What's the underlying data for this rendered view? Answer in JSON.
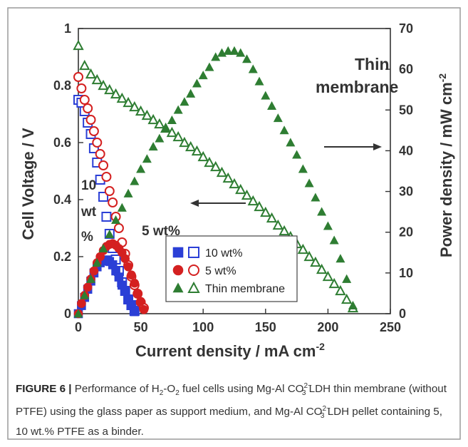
{
  "chart_data": {
    "type": "scatter",
    "xlabel": "Current density / mA cm",
    "xlabel_sup": "-2",
    "ylabel_left": "Cell Voltage / V",
    "ylabel_right": "Power density / mW cm",
    "ylabel_right_sup": "-2",
    "xlim": [
      0,
      250
    ],
    "ylim_left": [
      0,
      1
    ],
    "ylim_right": [
      0,
      70
    ],
    "x_ticks": [
      "0",
      "50",
      "100",
      "150",
      "200",
      "250"
    ],
    "y_left_ticks": [
      "0",
      "0.2",
      "0.4",
      "0.6",
      "0.8",
      "1"
    ],
    "y_right_ticks": [
      "0",
      "10",
      "20",
      "30",
      "40",
      "50",
      "60",
      "70"
    ],
    "legend": [
      {
        "label": "10 wt%",
        "color": "#2b3fd6",
        "markers": [
          "filled-square",
          "open-square"
        ]
      },
      {
        "label": "5 wt%",
        "color": "#d42020",
        "markers": [
          "filled-circle",
          "open-circle"
        ]
      },
      {
        "label": "Thin membrane",
        "color": "#2e7d32",
        "markers": [
          "filled-triangle",
          "open-triangle"
        ]
      }
    ],
    "annotations": {
      "thin_membrane_line1": "Thin",
      "thin_membrane_line2": "membrane",
      "ten_wt_a": "10",
      "ten_wt_b": "wt",
      "ten_wt_c": "%",
      "five_wt": "5 wt%"
    },
    "series": [
      {
        "name": "10 wt%",
        "kind": "voltage",
        "axis": "left",
        "color": "#2b3fd6",
        "marker": "open-square",
        "x": [
          0,
          2.5,
          5,
          7.5,
          10,
          12.5,
          15,
          17.5,
          20,
          22.5,
          25,
          27.5,
          30,
          32.5,
          35,
          37.5,
          40,
          42.5,
          45
        ],
        "y": [
          0.75,
          0.74,
          0.71,
          0.67,
          0.63,
          0.58,
          0.53,
          0.47,
          0.41,
          0.34,
          0.28,
          0.23,
          0.19,
          0.15,
          0.11,
          0.08,
          0.05,
          0.03,
          0.01
        ]
      },
      {
        "name": "10 wt%",
        "kind": "power",
        "axis": "right",
        "color": "#2b3fd6",
        "marker": "filled-square",
        "x": [
          0,
          2.5,
          5,
          7.5,
          10,
          12.5,
          15,
          17.5,
          20,
          22.5,
          25,
          27.5,
          30,
          32.5,
          35,
          37.5,
          40,
          42.5,
          45
        ],
        "y": [
          0,
          2,
          4,
          6,
          8,
          10,
          11.5,
          12.5,
          13,
          13.2,
          12.8,
          12,
          10.5,
          9,
          7,
          5.5,
          3.5,
          2,
          0.5
        ]
      },
      {
        "name": "5 wt%",
        "kind": "voltage",
        "axis": "left",
        "color": "#d42020",
        "marker": "open-circle",
        "x": [
          0,
          2.5,
          5,
          7.5,
          10,
          12.5,
          15,
          17.5,
          20,
          22.5,
          25,
          27.5,
          30,
          32.5,
          35,
          37.5,
          40,
          42.5,
          45,
          47.5,
          50,
          52.5
        ],
        "y": [
          0.83,
          0.79,
          0.75,
          0.72,
          0.68,
          0.64,
          0.6,
          0.56,
          0.52,
          0.48,
          0.43,
          0.39,
          0.34,
          0.3,
          0.25,
          0.21,
          0.17,
          0.13,
          0.1,
          0.07,
          0.04,
          0.02
        ]
      },
      {
        "name": "5 wt%",
        "kind": "power",
        "axis": "right",
        "color": "#d42020",
        "marker": "filled-circle",
        "x": [
          0,
          2.5,
          5,
          7.5,
          10,
          12.5,
          15,
          17.5,
          20,
          22.5,
          25,
          27.5,
          30,
          32.5,
          35,
          37.5,
          40,
          42.5,
          45,
          47.5,
          50,
          52.5
        ],
        "y": [
          0,
          2.5,
          4.5,
          6.5,
          8.5,
          10.5,
          12.5,
          14,
          15.5,
          16.5,
          17,
          17.2,
          16.8,
          16,
          15,
          13.5,
          11.5,
          9.5,
          7.5,
          5,
          3,
          1
        ]
      },
      {
        "name": "Thin membrane",
        "kind": "voltage",
        "axis": "left",
        "color": "#2e7d32",
        "marker": "open-triangle",
        "x": [
          0,
          5,
          10,
          15,
          20,
          25,
          30,
          35,
          40,
          45,
          50,
          55,
          60,
          65,
          70,
          75,
          80,
          85,
          90,
          95,
          100,
          105,
          110,
          115,
          120,
          125,
          130,
          135,
          140,
          145,
          150,
          155,
          160,
          165,
          170,
          175,
          180,
          185,
          190,
          195,
          200,
          205,
          210,
          215,
          220
        ],
        "y": [
          0.94,
          0.87,
          0.84,
          0.82,
          0.8,
          0.785,
          0.77,
          0.755,
          0.74,
          0.725,
          0.71,
          0.695,
          0.68,
          0.665,
          0.65,
          0.635,
          0.62,
          0.6,
          0.585,
          0.57,
          0.55,
          0.53,
          0.515,
          0.495,
          0.475,
          0.455,
          0.435,
          0.415,
          0.395,
          0.375,
          0.355,
          0.335,
          0.31,
          0.29,
          0.27,
          0.245,
          0.225,
          0.2,
          0.18,
          0.155,
          0.13,
          0.105,
          0.08,
          0.05,
          0.02
        ]
      },
      {
        "name": "Thin membrane",
        "kind": "power",
        "axis": "right",
        "color": "#2e7d32",
        "marker": "filled-triangle",
        "x": [
          0,
          5,
          10,
          15,
          20,
          25,
          30,
          35,
          40,
          45,
          50,
          55,
          60,
          65,
          70,
          75,
          80,
          85,
          90,
          95,
          100,
          105,
          110,
          115,
          120,
          125,
          130,
          135,
          140,
          145,
          150,
          155,
          160,
          165,
          170,
          175,
          180,
          185,
          190,
          195,
          200,
          205,
          210,
          215,
          220
        ],
        "y": [
          0,
          4.5,
          8.5,
          12.5,
          16,
          19.5,
          23,
          26,
          29.5,
          32.5,
          35.5,
          38,
          41,
          43,
          45.5,
          47.5,
          50,
          52,
          54,
          56.5,
          58.5,
          60.5,
          63,
          64,
          64.5,
          64.5,
          64,
          62.5,
          60,
          57,
          53.5,
          51,
          48,
          45,
          42,
          39,
          35.5,
          32,
          28.5,
          25,
          21.5,
          18,
          13.5,
          8.5,
          2
        ]
      }
    ]
  },
  "caption": {
    "label": "FIGURE 6 |",
    "t1": " Performance of H",
    "sub1": "2",
    "t2": "-O",
    "sub2": "2",
    "t3": " fuel cells using Mg-Al CO",
    "chem1_sup": "2−",
    "chem1_sub": "3",
    "t4": " LDH thin membrane (without PTFE) using the glass paper as support medium, and Mg-Al CO",
    "chem2_sup": "2−",
    "chem2_sub": "3",
    "t5": " LDH pellet containing 5, 10 wt.% PTFE as a binder."
  }
}
